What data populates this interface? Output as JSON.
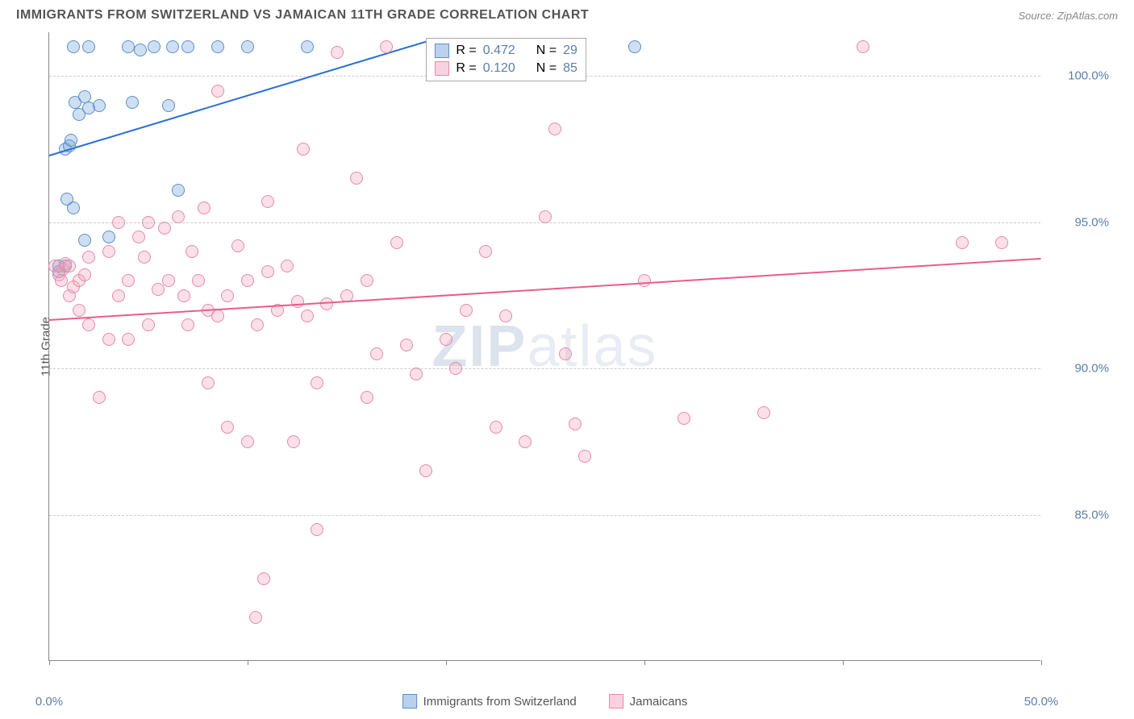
{
  "title": "IMMIGRANTS FROM SWITZERLAND VS JAMAICAN 11TH GRADE CORRELATION CHART",
  "source": "Source: ZipAtlas.com",
  "watermark_a": "ZIP",
  "watermark_b": "atlas",
  "y_axis_label": "11th Grade",
  "chart": {
    "type": "scatter",
    "xlim": [
      0,
      50
    ],
    "ylim": [
      80,
      101.5
    ],
    "x_ticks": [
      0,
      10,
      20,
      30,
      40,
      50
    ],
    "x_tick_labels": [
      "0.0%",
      "",
      "",
      "",
      "",
      "50.0%"
    ],
    "y_ticks": [
      85,
      90,
      95,
      100
    ],
    "y_tick_labels": [
      "85.0%",
      "90.0%",
      "95.0%",
      "100.0%"
    ],
    "background_color": "#ffffff",
    "grid_color": "#cccccc",
    "marker_size": 16,
    "series": [
      {
        "name": "Immigrants from Switzerland",
        "color_fill": "rgba(117,163,219,0.35)",
        "color_stroke": "#5b8fc9",
        "line_color": "#2a6fd6",
        "R": "0.472",
        "N": "29",
        "trend": {
          "x1": 0,
          "y1": 97.3,
          "x2": 19.5,
          "y2": 101.3
        },
        "points": [
          [
            0.5,
            93.3
          ],
          [
            0.5,
            93.5
          ],
          [
            0.8,
            93.5
          ],
          [
            0.8,
            97.5
          ],
          [
            0.9,
            95.8
          ],
          [
            1.0,
            97.6
          ],
          [
            1.1,
            97.8
          ],
          [
            1.2,
            95.5
          ],
          [
            1.2,
            101
          ],
          [
            1.3,
            99.1
          ],
          [
            1.5,
            98.7
          ],
          [
            1.8,
            99.3
          ],
          [
            1.8,
            94.4
          ],
          [
            2.0,
            98.9
          ],
          [
            2.0,
            101
          ],
          [
            2.5,
            99.0
          ],
          [
            3.0,
            94.5
          ],
          [
            4.0,
            101
          ],
          [
            4.2,
            99.1
          ],
          [
            4.6,
            100.9
          ],
          [
            5.3,
            101
          ],
          [
            6.0,
            99.0
          ],
          [
            6.2,
            101
          ],
          [
            6.5,
            96.1
          ],
          [
            7.0,
            101
          ],
          [
            8.5,
            101
          ],
          [
            10,
            101
          ],
          [
            13,
            101
          ],
          [
            29.5,
            101
          ]
        ]
      },
      {
        "name": "Jamaicans",
        "color_fill": "rgba(242,166,189,0.35)",
        "color_stroke": "#e88aa8",
        "line_color": "#e85d8a",
        "R": "0.120",
        "N": "85",
        "trend": {
          "x1": 0,
          "y1": 91.7,
          "x2": 50,
          "y2": 93.8
        },
        "points": [
          [
            0.3,
            93.5
          ],
          [
            0.5,
            93.2
          ],
          [
            0.6,
            93.0
          ],
          [
            0.7,
            93.4
          ],
          [
            0.8,
            93.6
          ],
          [
            1.0,
            92.5
          ],
          [
            1.0,
            93.5
          ],
          [
            1.2,
            92.8
          ],
          [
            1.5,
            93.0
          ],
          [
            1.5,
            92.0
          ],
          [
            1.8,
            93.2
          ],
          [
            2.0,
            91.5
          ],
          [
            2.0,
            93.8
          ],
          [
            2.5,
            89.0
          ],
          [
            3.0,
            94.0
          ],
          [
            3.0,
            91.0
          ],
          [
            3.5,
            95.0
          ],
          [
            3.5,
            92.5
          ],
          [
            4.0,
            93.0
          ],
          [
            4.0,
            91.0
          ],
          [
            4.5,
            94.5
          ],
          [
            4.8,
            93.8
          ],
          [
            5.0,
            95.0
          ],
          [
            5.0,
            91.5
          ],
          [
            5.5,
            92.7
          ],
          [
            5.8,
            94.8
          ],
          [
            6.0,
            93.0
          ],
          [
            6.5,
            95.2
          ],
          [
            6.8,
            92.5
          ],
          [
            7.0,
            91.5
          ],
          [
            7.2,
            94.0
          ],
          [
            7.5,
            93.0
          ],
          [
            7.8,
            95.5
          ],
          [
            8.0,
            89.5
          ],
          [
            8.0,
            92.0
          ],
          [
            8.5,
            99.5
          ],
          [
            8.5,
            91.8
          ],
          [
            9.0,
            88.0
          ],
          [
            9.0,
            92.5
          ],
          [
            9.5,
            94.2
          ],
          [
            10,
            87.5
          ],
          [
            10,
            93.0
          ],
          [
            10.4,
            81.5
          ],
          [
            10.5,
            91.5
          ],
          [
            10.8,
            82.8
          ],
          [
            11,
            95.7
          ],
          [
            11,
            93.3
          ],
          [
            11.5,
            92.0
          ],
          [
            12,
            93.5
          ],
          [
            12.3,
            87.5
          ],
          [
            12.5,
            92.3
          ],
          [
            12.8,
            97.5
          ],
          [
            13,
            91.8
          ],
          [
            13.5,
            89.5
          ],
          [
            13.5,
            84.5
          ],
          [
            14,
            92.2
          ],
          [
            14.5,
            100.8
          ],
          [
            15,
            92.5
          ],
          [
            15.5,
            96.5
          ],
          [
            16,
            93.0
          ],
          [
            16,
            89.0
          ],
          [
            16.5,
            90.5
          ],
          [
            17,
            101
          ],
          [
            17.5,
            94.3
          ],
          [
            18,
            90.8
          ],
          [
            18.5,
            89.8
          ],
          [
            19,
            86.5
          ],
          [
            20,
            91.0
          ],
          [
            20.5,
            90.0
          ],
          [
            21,
            92.0
          ],
          [
            22,
            94.0
          ],
          [
            22.5,
            88.0
          ],
          [
            23,
            91.8
          ],
          [
            24,
            87.5
          ],
          [
            25,
            95.2
          ],
          [
            25.5,
            98.2
          ],
          [
            26,
            90.5
          ],
          [
            26.5,
            88.1
          ],
          [
            27,
            87.0
          ],
          [
            30,
            93.0
          ],
          [
            32,
            88.3
          ],
          [
            36,
            88.5
          ],
          [
            41,
            101
          ],
          [
            46,
            94.3
          ],
          [
            48,
            94.3
          ]
        ]
      }
    ]
  },
  "stats_legend": {
    "R_label": "R =",
    "N_label": "N ="
  },
  "bottom_legend": [
    {
      "label": "Immigrants from Switzerland",
      "swatch": "blue"
    },
    {
      "label": "Jamaicans",
      "swatch": "pink"
    }
  ]
}
